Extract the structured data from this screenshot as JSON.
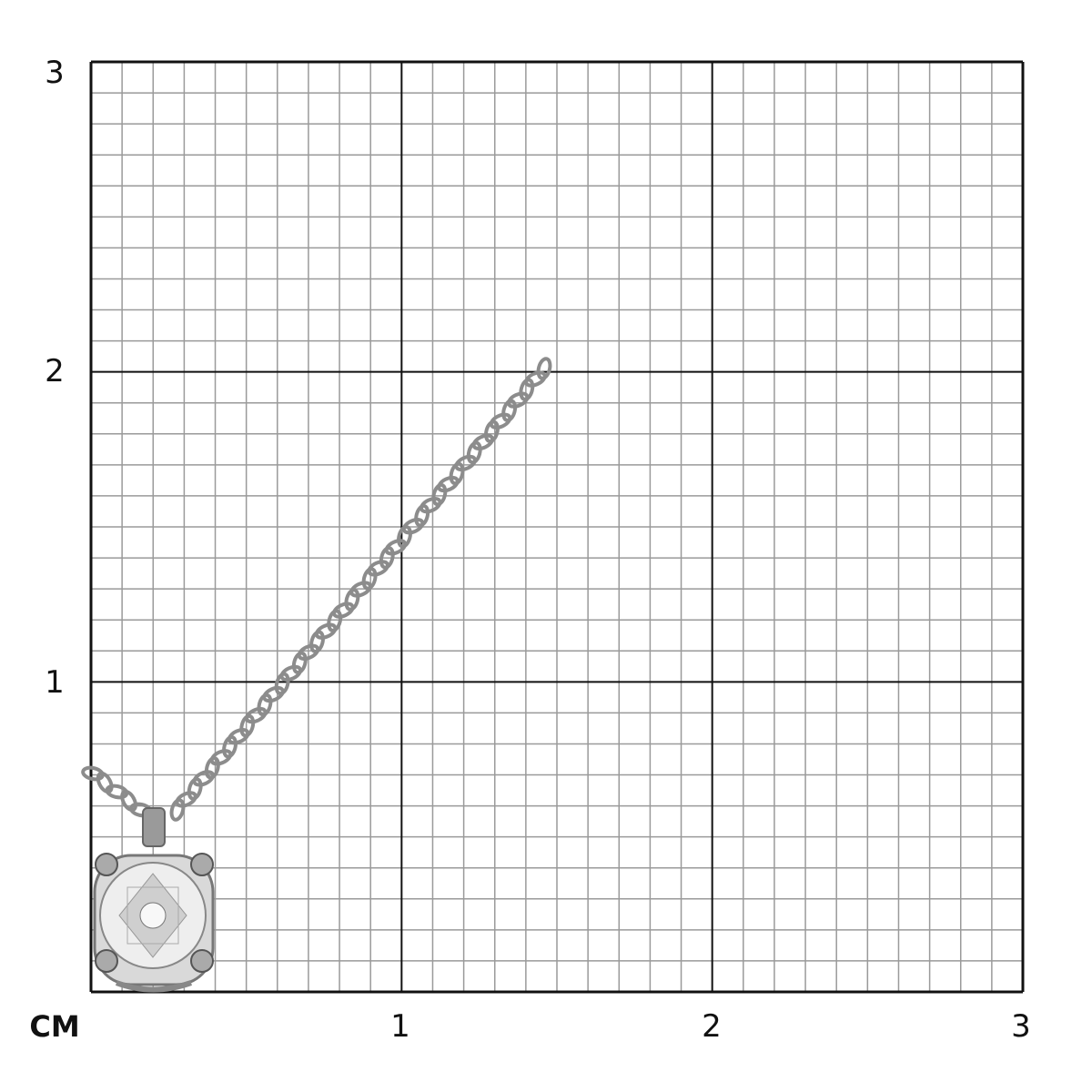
{
  "scale": {
    "unit": "CM",
    "y_labels": [
      "1",
      "2",
      "3"
    ],
    "x_labels": [
      "1",
      "2",
      "3"
    ],
    "range_cm": [
      0,
      3
    ],
    "minor_divisions_per_cm": 10
  },
  "colors": {
    "major_grid": "#111111",
    "minor_grid": "#9a9a9a",
    "metal": "#a8a8a8"
  }
}
